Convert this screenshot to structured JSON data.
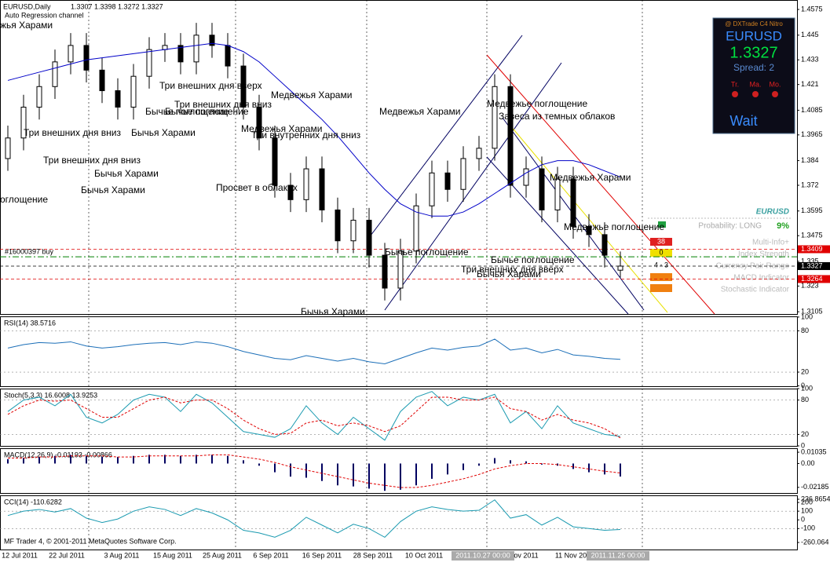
{
  "header": {
    "symbol": "EURUSD,Daily",
    "ohlc": "1.3307 1.3398 1.3272 1.3327",
    "indicator": "Auto Regression channel"
  },
  "chart_data": [
    {
      "type": "candlestick",
      "ylim": [
        1.3094,
        1.4621
      ],
      "yticks": [
        1.4575,
        1.445,
        1.433,
        1.421,
        1.4085,
        1.3965,
        1.384,
        1.372,
        1.3595,
        1.3475,
        1.335,
        1.323,
        1.3105
      ],
      "open": [
        1.385,
        1.395,
        1.41,
        1.42,
        1.432,
        1.44,
        1.428,
        1.418,
        1.41,
        1.425,
        1.438,
        1.44,
        1.432,
        1.445,
        1.44,
        1.43,
        1.41,
        1.395,
        1.372,
        1.365,
        1.38,
        1.36,
        1.345,
        1.355,
        1.338,
        1.322,
        1.34,
        1.362,
        1.378,
        1.37,
        1.385,
        1.39,
        1.42,
        1.372,
        1.38,
        1.36,
        1.375,
        1.352,
        1.348,
        1.3307
      ],
      "high": [
        1.401,
        1.416,
        1.426,
        1.438,
        1.446,
        1.446,
        1.434,
        1.424,
        1.431,
        1.444,
        1.446,
        1.446,
        1.451,
        1.451,
        1.446,
        1.436,
        1.416,
        1.401,
        1.378,
        1.386,
        1.386,
        1.366,
        1.361,
        1.361,
        1.344,
        1.346,
        1.368,
        1.384,
        1.384,
        1.391,
        1.396,
        1.426,
        1.426,
        1.386,
        1.386,
        1.381,
        1.381,
        1.358,
        1.354,
        1.3398
      ],
      "low": [
        1.379,
        1.389,
        1.404,
        1.414,
        1.426,
        1.422,
        1.412,
        1.404,
        1.404,
        1.419,
        1.432,
        1.426,
        1.426,
        1.434,
        1.424,
        1.404,
        1.389,
        1.366,
        1.359,
        1.359,
        1.354,
        1.339,
        1.339,
        1.332,
        1.316,
        1.316,
        1.334,
        1.356,
        1.364,
        1.364,
        1.379,
        1.384,
        1.366,
        1.366,
        1.354,
        1.354,
        1.346,
        1.342,
        1.332,
        1.3272
      ],
      "close": [
        1.395,
        1.41,
        1.42,
        1.432,
        1.44,
        1.428,
        1.418,
        1.41,
        1.425,
        1.438,
        1.44,
        1.432,
        1.445,
        1.44,
        1.43,
        1.41,
        1.395,
        1.372,
        1.365,
        1.38,
        1.36,
        1.345,
        1.355,
        1.338,
        1.322,
        1.34,
        1.362,
        1.378,
        1.37,
        1.385,
        1.39,
        1.42,
        1.372,
        1.38,
        1.36,
        1.375,
        1.352,
        1.348,
        1.338,
        1.3327
      ],
      "ma": {
        "color": "#0000c8",
        "values": [
          1.423,
          1.425,
          1.427,
          1.429,
          1.431,
          1.433,
          1.434,
          1.435,
          1.436,
          1.437,
          1.438,
          1.439,
          1.44,
          1.441,
          1.44,
          1.437,
          1.432,
          1.425,
          1.418,
          1.411,
          1.404,
          1.396,
          1.387,
          1.378,
          1.37,
          1.363,
          1.359,
          1.357,
          1.357,
          1.359,
          1.363,
          1.368,
          1.373,
          1.378,
          1.382,
          1.384,
          1.384,
          1.382,
          1.379,
          1.376
        ]
      },
      "price_lines": [
        {
          "value": 1.3409,
          "color": "#e00000"
        },
        {
          "value": 1.3327,
          "color": "#000000"
        },
        {
          "value": 1.3264,
          "color": "#e00000"
        }
      ],
      "order_line": {
        "label": "#16000397 buy",
        "value": 1.3372,
        "color": "#008000"
      }
    },
    {
      "type": "line",
      "title": "RSI(14) 38.5716",
      "ylim": [
        -0.5,
        101
      ],
      "yticks": [
        100,
        80,
        20,
        0
      ],
      "levels": [
        80,
        20
      ],
      "series": [
        {
          "color": "#1c6fb8",
          "values": [
            55,
            60,
            63,
            62,
            64,
            58,
            55,
            57,
            60,
            62,
            63,
            60,
            64,
            62,
            57,
            50,
            45,
            40,
            38,
            44,
            40,
            36,
            40,
            35,
            32,
            40,
            48,
            55,
            52,
            56,
            58,
            68,
            52,
            55,
            48,
            53,
            45,
            43,
            40,
            38.5716
          ]
        }
      ]
    },
    {
      "type": "line",
      "title": "Stoch(5,3,3) 16.6008 13.9253",
      "ylim": [
        0,
        100
      ],
      "yticks": [
        100,
        80,
        20,
        0
      ],
      "levels": [
        80,
        20
      ],
      "series": [
        {
          "color": "#1a9ab0",
          "values": [
            60,
            80,
            85,
            70,
            90,
            50,
            40,
            55,
            80,
            90,
            85,
            60,
            90,
            75,
            50,
            25,
            20,
            15,
            30,
            70,
            40,
            20,
            50,
            30,
            10,
            60,
            85,
            95,
            70,
            85,
            80,
            90,
            40,
            60,
            30,
            70,
            40,
            30,
            20,
            16.6008
          ]
        },
        {
          "color": "#e00000",
          "dash": true,
          "values": [
            55,
            70,
            80,
            78,
            80,
            65,
            50,
            50,
            65,
            80,
            85,
            75,
            80,
            80,
            65,
            45,
            30,
            20,
            22,
            40,
            45,
            35,
            40,
            35,
            25,
            35,
            60,
            85,
            85,
            80,
            80,
            85,
            65,
            60,
            45,
            55,
            45,
            40,
            30,
            13.9253
          ]
        }
      ]
    },
    {
      "type": "histogram",
      "title": "MACD(12,26,9) -0.01193 -0.00866",
      "ylim": [
        -0.027,
        0.014
      ],
      "yticks": [
        0.01035,
        {
          "value": 0,
          "label": "0.00"
        },
        -0.02185
      ],
      "values": [
        0.004,
        0.005,
        0.006,
        0.007,
        0.008,
        0.007,
        0.006,
        0.006,
        0.007,
        0.008,
        0.008,
        0.007,
        0.008,
        0.008,
        0.007,
        0.003,
        -0.002,
        -0.008,
        -0.012,
        -0.013,
        -0.016,
        -0.02,
        -0.021,
        -0.023,
        -0.025,
        -0.024,
        -0.02,
        -0.014,
        -0.01,
        -0.006,
        -0.002,
        0.005,
        0.003,
        0.002,
        -0.001,
        -0.002,
        -0.005,
        -0.008,
        -0.01,
        -0.01193
      ],
      "color": "#000060",
      "signal": {
        "color": "#e00000",
        "values": [
          0.005,
          0.005,
          0.006,
          0.006,
          0.007,
          0.007,
          0.007,
          0.006,
          0.006,
          0.007,
          0.007,
          0.007,
          0.007,
          0.008,
          0.008,
          0.006,
          0.004,
          0.001,
          -0.003,
          -0.006,
          -0.009,
          -0.012,
          -0.015,
          -0.018,
          -0.02,
          -0.022,
          -0.022,
          -0.02,
          -0.017,
          -0.014,
          -0.01,
          -0.005,
          -0.002,
          0,
          0,
          -0.001,
          -0.003,
          -0.005,
          -0.007,
          -0.00866
        ]
      }
    },
    {
      "type": "line",
      "title": "CCI(14) -110.6282",
      "ylim": [
        -341,
        282
      ],
      "yticks": [
        236.8654,
        200,
        100,
        0,
        -100,
        -260.064
      ],
      "levels": [
        100,
        -100
      ],
      "series": [
        {
          "color": "#1a9ab0",
          "values": [
            50,
            100,
            120,
            90,
            130,
            20,
            -30,
            10,
            100,
            150,
            120,
            50,
            130,
            80,
            0,
            -120,
            -150,
            -200,
            -120,
            30,
            -60,
            -150,
            -50,
            -100,
            -200,
            -20,
            100,
            150,
            120,
            100,
            110,
            230,
            20,
            60,
            -60,
            30,
            -80,
            -100,
            -120,
            -110.6282
          ]
        }
      ]
    }
  ],
  "dates": [
    "12 Jul 2011",
    "22 Jul 2011",
    "3 Aug 2011",
    "15 Aug 2011",
    "25 Aug 2011",
    "6 Sep 2011",
    "16 Sep 2011",
    "28 Sep 2011",
    "10 Oct 2011",
    "2011.10.27 00:00",
    "ov 2011",
    "11 Nov 20",
    "2011.11.25 00:00"
  ],
  "annotations": [
    "жья Харами",
    "Три внешних дня вниз",
    "Три внешних дня вниз",
    "Бычья Харами",
    "Бычья Харами",
    "оглощение",
    "Бычья Харами",
    "Бычье поглощение",
    "Бычье поглощение",
    "Три внешних дня вверх",
    "Три внешних дня вниз",
    "Медвежья Харами",
    "Медвежья Харами",
    "Три внутренних дня вниз",
    "Просвет в облаках",
    "Медвежья Харами",
    "Бычье поглощение",
    "Бычья Харами",
    "Медвежье поглощение",
    "Завеса из темных облаков",
    "Медвежья Харами",
    "Медвежье поглощение",
    "Бычье поглощение",
    "Три внешних дня вверх",
    "Бычья Харами"
  ],
  "dx_panel": {
    "brand": "@ DXTrade C4 Nitro",
    "symbol": "EURUSD",
    "price": "1.3327",
    "spread": "Spread: 2",
    "flags": [
      "Tr.",
      "Ma.",
      "Mo."
    ],
    "status": "Wait"
  },
  "info": {
    "symbol": "EURUSD",
    "probability": "Probability:  LONG",
    "percent": "9%",
    "rows": [
      "Multi-Info+",
      "Index Strength",
      "Currency Pair Range",
      "MACD Indicator",
      "Stochastic Indicator"
    ],
    "box1": 38,
    "box2": 0,
    "box3": "4 - 3"
  },
  "footer": "MF Trader 4, © 2001-2011 MetaQuotes Software Corp."
}
